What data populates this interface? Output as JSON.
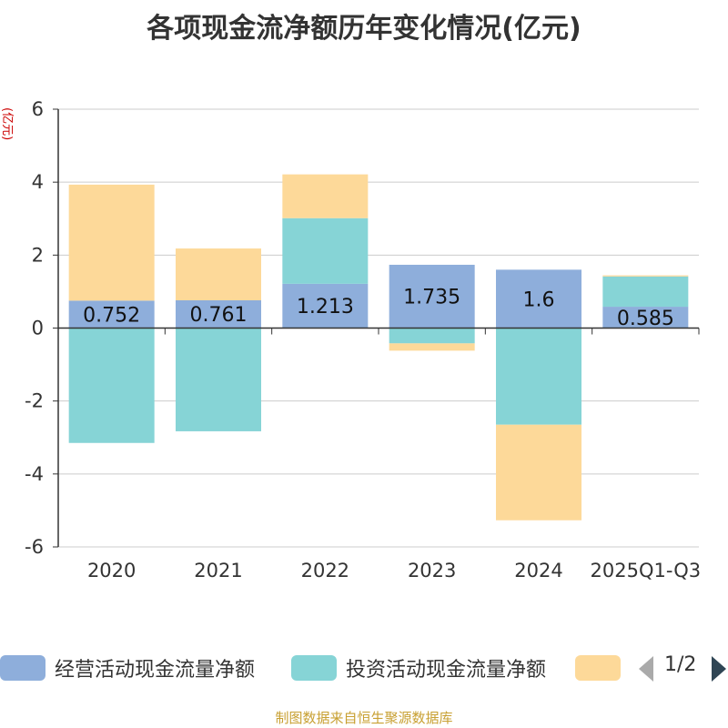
{
  "title": "各项现金流净额历年变化情况(亿元)",
  "source_note": "制图数据来自恒生聚源数据库",
  "pager": {
    "text": "1/2"
  },
  "colors": {
    "operating": "#8eaedb",
    "investing": "#86d4d6",
    "financing": "#fdd999",
    "axis": "#333333",
    "grid": "#cccccc",
    "pager_active": "#2f4554",
    "pager_inactive": "#aaaaaa"
  },
  "chart_data": {
    "type": "bar",
    "stacked": true,
    "title": "各项现金流净额历年变化情况(亿元)",
    "ylabel": "(亿元)",
    "ylim": [
      -6,
      6
    ],
    "yticks": [
      6,
      4,
      2,
      0,
      -2,
      -4,
      -6
    ],
    "grid": true,
    "legend_position": "bottom",
    "categories": [
      "2020",
      "2021",
      "2022",
      "2023",
      "2024",
      "2025Q1-Q3"
    ],
    "series": [
      {
        "name": "经营活动现金流量净额",
        "color": "#8eaedb",
        "values": [
          0.752,
          0.761,
          1.213,
          1.735,
          1.6,
          0.585
        ],
        "labels": [
          "0.752",
          "0.761",
          "1.213",
          "1.735",
          "1.6",
          "0.585"
        ]
      },
      {
        "name": "投资活动现金流量净额",
        "color": "#86d4d6",
        "values": [
          -3.15,
          -2.83,
          1.8,
          -0.42,
          -2.65,
          0.83
        ]
      },
      {
        "name": "",
        "color": "#fdd999",
        "values": [
          3.18,
          1.42,
          1.2,
          -0.2,
          -2.62,
          0.03
        ]
      }
    ]
  }
}
